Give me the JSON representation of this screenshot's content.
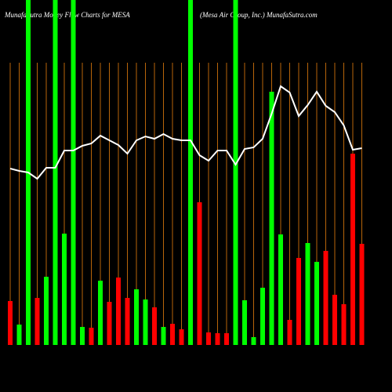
{
  "chart_data": {
    "type": "bar",
    "title": "MunafaSutra Money Flow Charts for MESA",
    "subtitle": "(Mesa Air Group, Inc.) MunafaSutra.com",
    "ylim": [
      0,
      440
    ],
    "series": [
      {
        "name": null,
        "type": "bar",
        "values": [
          56,
          26,
          440,
          60,
          87,
          440,
          142,
          440,
          23,
          22,
          82,
          55,
          86,
          60,
          71,
          58,
          48,
          23,
          27,
          20,
          440,
          182,
          16,
          15,
          15,
          440,
          57,
          10,
          73,
          323,
          141,
          32,
          111,
          130,
          106,
          120,
          64,
          52,
          244,
          129
        ],
        "colors": [
          "#ff0000",
          "#00ff00",
          "#00ff00",
          "#ff0000",
          "#00ff00",
          "#00ff00",
          "#00ff00",
          "#00ff00",
          "#00ff00",
          "#ff0000",
          "#00ff00",
          "#ff0000",
          "#ff0000",
          "#ff0000",
          "#00ff00",
          "#00ff00",
          "#ff0000",
          "#00ff00",
          "#ff0000",
          "#ff0000",
          "#00ff00",
          "#ff0000",
          "#ff0000",
          "#ff0000",
          "#ff0000",
          "#00ff00",
          "#00ff00",
          "#00ff00",
          "#00ff00",
          "#00ff00",
          "#00ff00",
          "#ff0000",
          "#ff0000",
          "#00ff00",
          "#00ff00",
          "#ff0000",
          "#ff0000",
          "#ff0000",
          "#ff0000",
          "#ff0000"
        ]
      },
      {
        "name": null,
        "type": "line",
        "color": "#ffffff",
        "values": [
          225,
          222,
          220,
          212,
          226,
          226,
          248,
          248,
          254,
          257,
          267,
          261,
          255,
          244,
          261,
          266,
          263,
          269,
          263,
          261,
          261,
          242,
          235,
          248,
          248,
          230,
          250,
          252,
          263,
          295,
          330,
          322,
          292,
          306,
          323,
          305,
          297,
          280,
          249,
          251
        ]
      }
    ],
    "grid_color": "#b8650a"
  }
}
